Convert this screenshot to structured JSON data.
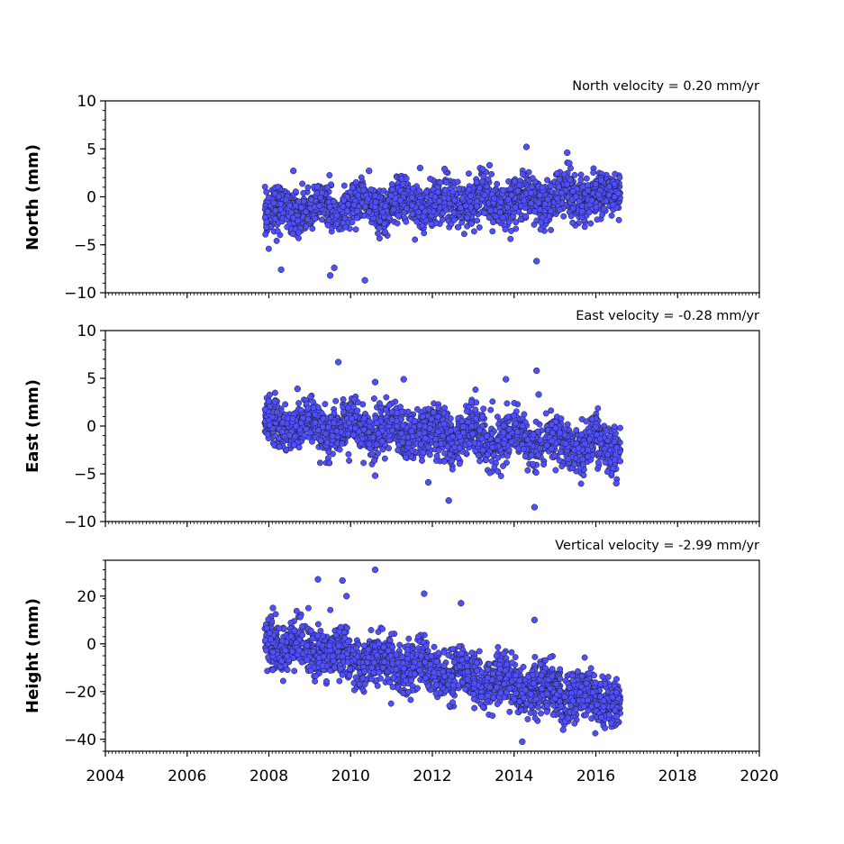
{
  "chart_data": [
    {
      "type": "scatter",
      "title": "North velocity = 0.20 mm/yr",
      "xlabel": "",
      "ylabel": "North (mm)",
      "xlim": [
        2004,
        2020
      ],
      "ylim": [
        -10,
        10
      ],
      "yticks": [
        10,
        5,
        0,
        -5,
        -10
      ],
      "marker_color": "#4f4fff",
      "edge_color": "#1a1a1a",
      "series": [
        {
          "x_range": [
            2007.9,
            2016.6
          ],
          "trend_start": -1.6,
          "slope_per_year": 0.2,
          "scatter_sd": 1.1,
          "outliers": [
            [
              2008.3,
              -7.6
            ],
            [
              2008.6,
              2.7
            ],
            [
              2009.5,
              -8.2
            ],
            [
              2009.6,
              -7.4
            ],
            [
              2010.35,
              -8.7
            ],
            [
              2010.45,
              2.7
            ],
            [
              2011.7,
              3.0
            ],
            [
              2012.3,
              2.9
            ],
            [
              2013.4,
              3.3
            ],
            [
              2014.3,
              5.2
            ],
            [
              2014.55,
              -6.7
            ],
            [
              2015.3,
              4.6
            ],
            [
              2015.35,
              3.5
            ]
          ]
        }
      ]
    },
    {
      "type": "scatter",
      "title": "East velocity = -0.28 mm/yr",
      "xlabel": "",
      "ylabel": "East (mm)",
      "xlim": [
        2004,
        2020
      ],
      "ylim": [
        -10,
        10
      ],
      "yticks": [
        10,
        5,
        0,
        -5,
        -10
      ],
      "marker_color": "#4f4fff",
      "edge_color": "#1a1a1a",
      "series": [
        {
          "x_range": [
            2007.9,
            2016.6
          ],
          "trend_start": 0.3,
          "slope_per_year": -0.28,
          "scatter_sd": 1.2,
          "outliers": [
            [
              2008.0,
              2.6
            ],
            [
              2008.7,
              3.9
            ],
            [
              2009.7,
              6.7
            ],
            [
              2010.6,
              4.6
            ],
            [
              2010.6,
              -5.2
            ],
            [
              2011.3,
              4.9
            ],
            [
              2011.9,
              -5.9
            ],
            [
              2012.4,
              -7.8
            ],
            [
              2013.8,
              4.9
            ],
            [
              2014.5,
              -8.5
            ],
            [
              2014.55,
              5.8
            ],
            [
              2014.6,
              3.3
            ],
            [
              2016.5,
              -6.0
            ]
          ]
        }
      ]
    },
    {
      "type": "scatter",
      "title": "Vertical velocity = -2.99 mm/yr",
      "xlabel": "",
      "ylabel": "Height (mm)",
      "xlim": [
        2004,
        2020
      ],
      "ylim": [
        -45,
        35
      ],
      "yticks": [
        20,
        0,
        -20,
        -40
      ],
      "xticks": [
        2004,
        2006,
        2008,
        2010,
        2012,
        2014,
        2016,
        2018,
        2020
      ],
      "marker_color": "#4f4fff",
      "edge_color": "#1a1a1a",
      "series": [
        {
          "x_range": [
            2007.9,
            2016.6
          ],
          "trend_start": 1.0,
          "slope_per_year": -2.99,
          "scatter_sd": 5.0,
          "outliers": [
            [
              2008.1,
              15.0
            ],
            [
              2009.2,
              27.0
            ],
            [
              2009.8,
              26.5
            ],
            [
              2009.9,
              20.0
            ],
            [
              2010.6,
              31.0
            ],
            [
              2011.8,
              21.0
            ],
            [
              2012.7,
              17.0
            ],
            [
              2014.2,
              -41.0
            ],
            [
              2014.5,
              10.0
            ],
            [
              2015.2,
              -36.0
            ]
          ]
        }
      ]
    }
  ]
}
